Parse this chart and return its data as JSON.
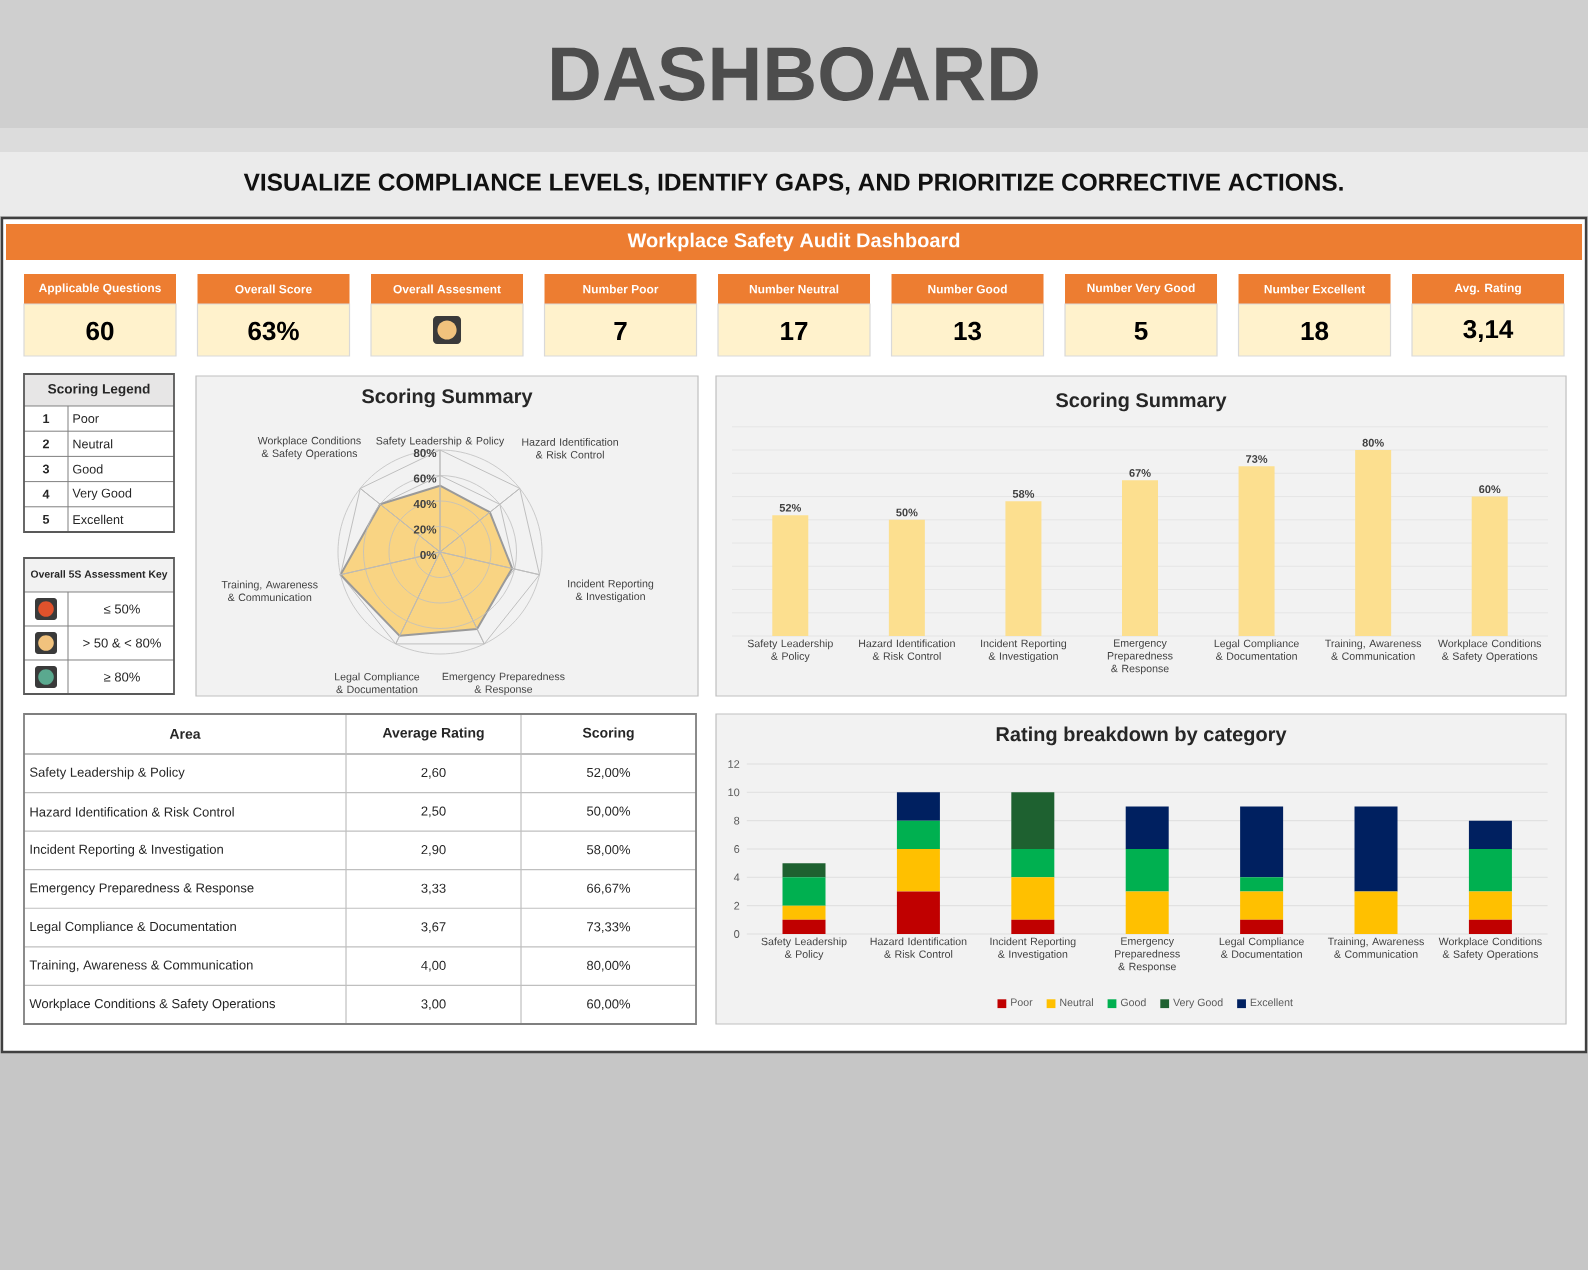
{
  "chart_data": [
    {
      "type": "other",
      "title": "DASHBOARD",
      "subtitle": "VISUALIZE COMPLIANCE LEVELS, IDENTIFY GAPS, AND PRIORITIZE CORRECTIVE ACTIONS.",
      "annotations": [
        "Workplace Safety Audit Dashboard"
      ],
      "categories": [
        "Applicable Questions",
        "Overall Score",
        "Overall Assesment",
        "Number Poor",
        "Number Neutral",
        "Number Good",
        "Number Very Good",
        "Number Excellent",
        "Avg. Rating"
      ],
      "value_labels": [
        "60",
        "63%",
        null,
        "7",
        "17",
        "13",
        "5",
        "18",
        "3,14"
      ]
    },
    {
      "type": "other",
      "title": "Scoring Legend",
      "categories": [
        "Poor",
        "Neutral",
        "Good",
        "Very Good",
        "Excellent"
      ],
      "values": [
        1,
        2,
        3,
        4,
        5
      ],
      "data_labels": true
    },
    {
      "type": "other",
      "title": "Overall 5S Assessment Key",
      "categories": [
        "≤ 50%",
        "> 50 & < 80%",
        "≥ 80%"
      ],
      "colors": [
        "#e0522c",
        "#f1c27d",
        "#5aa98f"
      ]
    },
    {
      "type": "radar",
      "title": "Scoring Summary",
      "categories": [
        "Safety Leadership & Policy",
        "Hazard Identification & Risk Control",
        "Incident Reporting & Investigation",
        "Emergency Preparedness & Response",
        "Legal Compliance & Documentation",
        "Training, Awareness & Communication",
        "Workplace Conditions & Safety Operations"
      ],
      "values": [
        52,
        50,
        58,
        67,
        73,
        80,
        60
      ],
      "color": "#f9d483",
      "ylim": [
        0,
        80
      ],
      "yticks": [
        {
          "value": 0,
          "label": "0%"
        },
        {
          "value": 20,
          "label": "20%"
        },
        {
          "value": 40,
          "label": "40%"
        },
        {
          "value": 60,
          "label": "60%"
        },
        {
          "value": 80,
          "label": "80%"
        }
      ]
    },
    {
      "type": "bar",
      "title": "Scoring Summary",
      "categories": [
        "Safety Leadership & Policy",
        "Hazard Identification & Risk Control",
        "Incident Reporting & Investigation",
        "Emergency Preparedness & Response",
        "Legal Compliance & Documentation",
        "Training, Awareness & Communication",
        "Workplace Conditions & Safety Operations"
      ],
      "values": [
        52,
        50,
        58,
        67,
        73,
        80,
        60
      ],
      "value_labels": [
        "52%",
        "50%",
        "58%",
        "67%",
        "73%",
        "80%",
        "60%"
      ],
      "color": "#fcdf8f",
      "ylim": [
        0,
        90
      ],
      "yticks": [
        {
          "value": 0,
          "label": null
        },
        {
          "value": 10,
          "label": null
        },
        {
          "value": 20,
          "label": null
        },
        {
          "value": 30,
          "label": null
        },
        {
          "value": 40,
          "label": null
        },
        {
          "value": 50,
          "label": null
        },
        {
          "value": 60,
          "label": null
        },
        {
          "value": 70,
          "label": null
        },
        {
          "value": 80,
          "label": null
        },
        {
          "value": 90,
          "label": null
        }
      ],
      "grid": "y",
      "tick_labels": "x"
    },
    {
      "type": "other",
      "ylabel": "Area",
      "categories": [
        "Average Rating",
        "Scoring"
      ],
      "y_categories": [
        "Safety Leadership & Policy",
        "Hazard Identification & Risk Control",
        "Incident Reporting & Investigation",
        "Emergency Preparedness & Response",
        "Legal Compliance & Documentation",
        "Training, Awareness & Communication",
        "Workplace Conditions & Safety Operations"
      ],
      "cell_labels": [
        [
          "2,60",
          "52,00%"
        ],
        [
          "2,50",
          "50,00%"
        ],
        [
          "2,90",
          "58,00%"
        ],
        [
          "3,33",
          "66,67%"
        ],
        [
          "3,67",
          "73,33%"
        ],
        [
          "4,00",
          "80,00%"
        ],
        [
          "3,00",
          "60,00%"
        ]
      ]
    },
    {
      "type": "bar",
      "title": "Rating breakdown by category",
      "categories": [
        "Safety Leadership & Policy",
        "Hazard Identification & Risk Control",
        "Incident Reporting & Investigation",
        "Emergency Preparedness & Response",
        "Legal Compliance & Documentation",
        "Training, Awareness & Communication",
        "Workplace Conditions & Safety Operations"
      ],
      "stacked": true,
      "series": [
        {
          "name": "Poor",
          "color": "#c00000",
          "values": [
            1,
            3,
            1,
            0,
            1,
            0,
            1
          ]
        },
        {
          "name": "Neutral",
          "color": "#ffc000",
          "values": [
            1,
            3,
            3,
            3,
            2,
            3,
            2
          ]
        },
        {
          "name": "Good",
          "color": "#00b050",
          "values": [
            2,
            2,
            2,
            3,
            1,
            0,
            3
          ]
        },
        {
          "name": "Very Good",
          "color": "#1e6130",
          "values": [
            1,
            0,
            4,
            0,
            0,
            0,
            0
          ]
        },
        {
          "name": "Excellent",
          "color": "#002060",
          "values": [
            0,
            2,
            0,
            3,
            5,
            6,
            2
          ]
        }
      ],
      "ylim": [
        0,
        12
      ],
      "yticks": [
        0,
        2,
        4,
        6,
        8,
        10,
        12
      ],
      "grid": "y",
      "legend": "bottom"
    }
  ]
}
